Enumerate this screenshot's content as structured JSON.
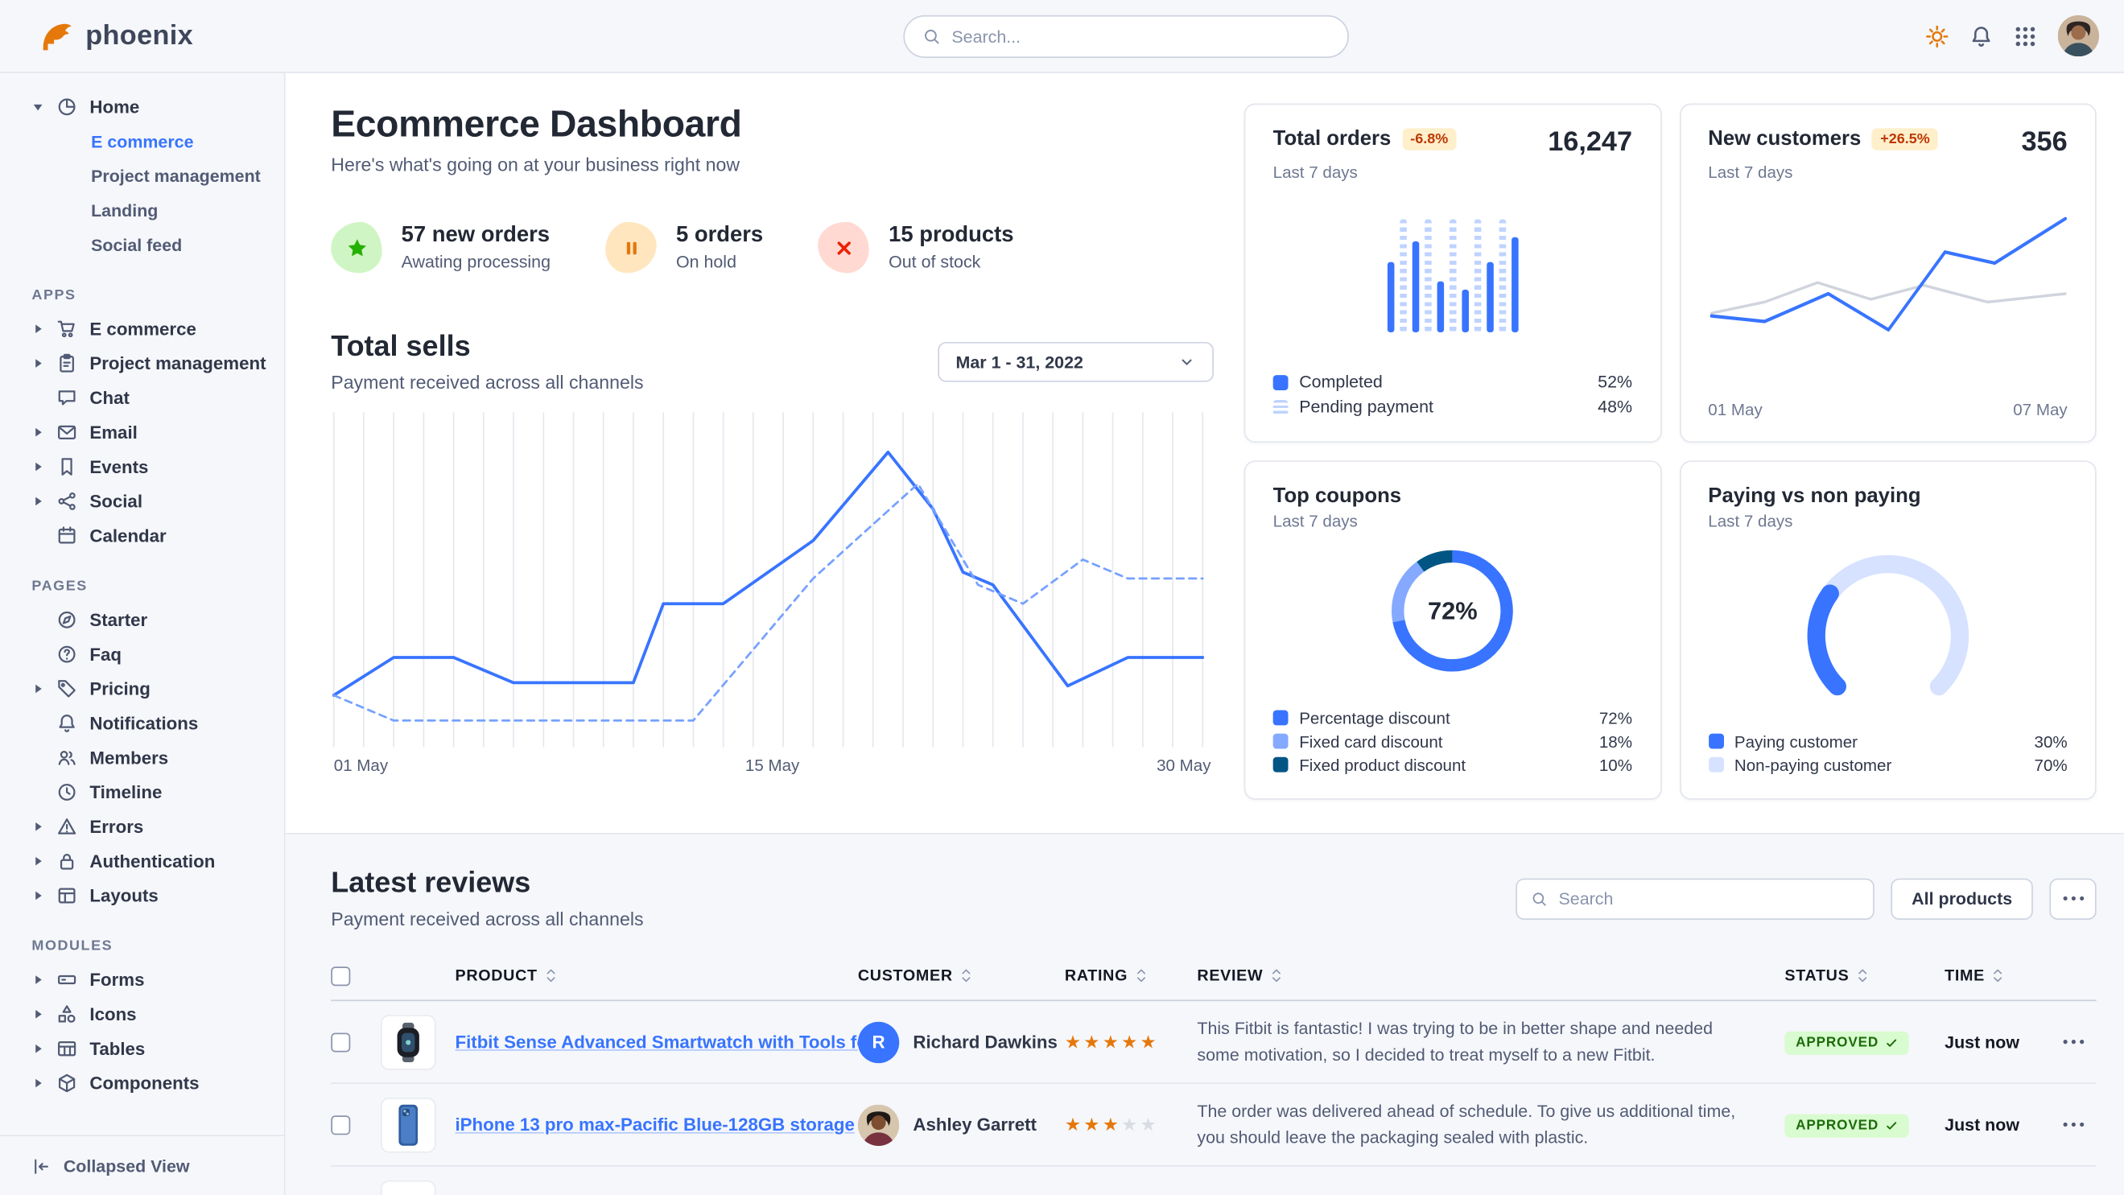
{
  "colors": {
    "primary": "#3874ff",
    "badge_warning_bg": "#ffefca",
    "badge_warning_text": "#bc3803",
    "badge_success_bg": "#d9fbd0",
    "badge_success_text": "#1c6c09",
    "star_filled": "#e5780b",
    "star_empty": "#d9dce3"
  },
  "navbar": {
    "logo_text": "phoenix",
    "search_placeholder": "Search..."
  },
  "sidebar": {
    "home": {
      "label": "Home",
      "children": [
        {
          "label": "E commerce",
          "active": true
        },
        {
          "label": "Project management",
          "active": false
        },
        {
          "label": "Landing",
          "active": false
        },
        {
          "label": "Social feed",
          "active": false
        }
      ]
    },
    "sections": [
      {
        "label": "APPS",
        "items": [
          {
            "label": "E commerce",
            "icon": "cart-icon",
            "caret": true
          },
          {
            "label": "Project management",
            "icon": "clipboard-icon",
            "caret": true
          },
          {
            "label": "Chat",
            "icon": "chat-icon",
            "caret": false
          },
          {
            "label": "Email",
            "icon": "mail-icon",
            "caret": true
          },
          {
            "label": "Events",
            "icon": "bookmark-icon",
            "caret": true
          },
          {
            "label": "Social",
            "icon": "share-icon",
            "caret": true
          },
          {
            "label": "Calendar",
            "icon": "calendar-icon",
            "caret": false
          }
        ]
      },
      {
        "label": "PAGES",
        "items": [
          {
            "label": "Starter",
            "icon": "compass-icon",
            "caret": false
          },
          {
            "label": "Faq",
            "icon": "question-icon",
            "caret": false
          },
          {
            "label": "Pricing",
            "icon": "tag-icon",
            "caret": true
          },
          {
            "label": "Notifications",
            "icon": "bell-icon",
            "caret": false
          },
          {
            "label": "Members",
            "icon": "users-icon",
            "caret": false
          },
          {
            "label": "Timeline",
            "icon": "clock-icon",
            "caret": false
          },
          {
            "label": "Errors",
            "icon": "warning-icon",
            "caret": true
          },
          {
            "label": "Authentication",
            "icon": "lock-icon",
            "caret": true
          },
          {
            "label": "Layouts",
            "icon": "layout-icon",
            "caret": true
          }
        ]
      },
      {
        "label": "MODULES",
        "items": [
          {
            "label": "Forms",
            "icon": "form-icon",
            "caret": true
          },
          {
            "label": "Icons",
            "icon": "shapes-icon",
            "caret": true
          },
          {
            "label": "Tables",
            "icon": "table-icon",
            "caret": true
          },
          {
            "label": "Components",
            "icon": "cube-icon",
            "caret": true
          }
        ]
      }
    ],
    "footer": {
      "label": "Collapsed View"
    }
  },
  "header": {
    "title": "Ecommerce Dashboard",
    "subtitle": "Here's what's going on at your business right now"
  },
  "stats": [
    {
      "icon": "star",
      "value": "57 new orders",
      "label": "Awating processing",
      "color": "#25b003",
      "bg": "#d0f5c4"
    },
    {
      "icon": "pause",
      "value": "5 orders",
      "label": "On hold",
      "color": "#e5780b",
      "bg": "#ffe6bf"
    },
    {
      "icon": "x",
      "value": "15 products",
      "label": "Out of stock",
      "color": "#ed2000",
      "bg": "#ffd9d2"
    }
  ],
  "total_sells": {
    "title": "Total sells",
    "subtitle": "Payment received across all channels",
    "date_range": "Mar 1 - 31, 2022"
  },
  "cards": {
    "total_orders": {
      "title": "Total orders",
      "badge": "-6.8%",
      "value": "16,247",
      "period": "Last 7 days",
      "legend": [
        {
          "label": "Completed",
          "value": "52%",
          "variant": "solid"
        },
        {
          "label": "Pending payment",
          "value": "48%",
          "variant": "faded"
        }
      ]
    },
    "new_customers": {
      "title": "New customers",
      "badge": "+26.5%",
      "value": "356",
      "period": "Last 7 days",
      "x_labels": [
        "01 May",
        "07 May"
      ]
    },
    "top_coupons": {
      "title": "Top coupons",
      "period": "Last 7 days"
    },
    "paying": {
      "title": "Paying vs non paying",
      "period": "Last 7 days"
    }
  },
  "chart_data": [
    {
      "id": "total-sells",
      "type": "line",
      "title": "Total sells",
      "x_labels": [
        "01 May",
        "15 May",
        "30 May"
      ],
      "x_range": [
        1,
        30
      ],
      "y_range": [
        0,
        100
      ],
      "grid": "vertical-daily",
      "legend_position": "none",
      "series": [
        {
          "name": "current",
          "style": "solid",
          "color": "#3874ff",
          "points": [
            [
              1,
              13
            ],
            [
              3,
              25
            ],
            [
              5,
              25
            ],
            [
              7,
              17
            ],
            [
              11,
              17
            ],
            [
              12,
              42
            ],
            [
              14,
              42
            ],
            [
              17,
              62
            ],
            [
              19.5,
              90
            ],
            [
              21,
              72
            ],
            [
              22,
              52
            ],
            [
              23,
              48
            ],
            [
              25.5,
              16
            ],
            [
              27.5,
              25
            ],
            [
              30,
              25
            ]
          ]
        },
        {
          "name": "previous",
          "style": "dashed",
          "color": "#76a1ff",
          "points": [
            [
              1,
              13
            ],
            [
              3,
              5
            ],
            [
              13,
              5
            ],
            [
              17,
              50
            ],
            [
              20.5,
              80
            ],
            [
              22.5,
              48
            ],
            [
              24,
              42
            ],
            [
              26,
              56
            ],
            [
              27.5,
              50
            ],
            [
              30,
              50
            ]
          ]
        }
      ]
    },
    {
      "id": "total-orders",
      "type": "bar",
      "ylim": [
        0,
        100
      ],
      "bars": [
        {
          "value": 62,
          "variant": "solid"
        },
        {
          "value": 100,
          "variant": "faded"
        },
        {
          "value": 80,
          "variant": "solid"
        },
        {
          "value": 100,
          "variant": "faded"
        },
        {
          "value": 45,
          "variant": "solid"
        },
        {
          "value": 100,
          "variant": "faded"
        },
        {
          "value": 38,
          "variant": "solid"
        },
        {
          "value": 100,
          "variant": "faded"
        },
        {
          "value": 62,
          "variant": "solid"
        },
        {
          "value": 100,
          "variant": "faded"
        },
        {
          "value": 84,
          "variant": "solid"
        }
      ]
    },
    {
      "id": "new-customers",
      "type": "line",
      "x_labels": [
        "01 May",
        "07 May"
      ],
      "series": [
        {
          "name": "previous",
          "style": "solid",
          "color": "#d0d4dd",
          "points": [
            [
              0,
              22
            ],
            [
              15,
              30
            ],
            [
              30,
              44
            ],
            [
              45,
              32
            ],
            [
              60,
              42
            ],
            [
              78,
              30
            ],
            [
              100,
              36
            ]
          ]
        },
        {
          "name": "current",
          "style": "solid",
          "color": "#3874ff",
          "points": [
            [
              0,
              20
            ],
            [
              15,
              16
            ],
            [
              33,
              36
            ],
            [
              50,
              10
            ],
            [
              66,
              66
            ],
            [
              80,
              58
            ],
            [
              100,
              90
            ]
          ]
        }
      ]
    },
    {
      "id": "top-coupons",
      "type": "donut",
      "center_label": "72%",
      "segments": [
        {
          "label": "Percentage discount",
          "value": 72,
          "color": "#3874ff"
        },
        {
          "label": "Fixed card discount",
          "value": 18,
          "color": "#85a9ff"
        },
        {
          "label": "Fixed product discount",
          "value": 10,
          "color": "#005585"
        }
      ]
    },
    {
      "id": "paying-gauge",
      "type": "gauge",
      "arc_degrees": 270,
      "segments": [
        {
          "label": "Paying customer",
          "value": 30,
          "color": "#3874ff"
        },
        {
          "label": "Non-paying customer",
          "value": 70,
          "color": "#d6e2ff"
        }
      ]
    }
  ],
  "reviews": {
    "title": "Latest reviews",
    "subtitle": "Payment received across all channels",
    "search_placeholder": "Search",
    "filter_button": "All products",
    "columns": [
      "PRODUCT",
      "CUSTOMER",
      "RATING",
      "REVIEW",
      "STATUS",
      "TIME"
    ],
    "rating_max": 5,
    "has_more_rows": true,
    "rows": [
      {
        "product": "Fitbit Sense Advanced Smartwatch with Tools fo...",
        "product_image": "watch",
        "customer": "Richard Dawkins",
        "avatar": {
          "type": "initial",
          "text": "R"
        },
        "rating": 5,
        "review": "This Fitbit is fantastic! I was trying to be in better shape and needed some motivation, so I decided to treat myself to a new Fitbit.",
        "status": "APPROVED",
        "time": "Just now"
      },
      {
        "product": "iPhone 13 pro max-Pacific Blue-128GB storage",
        "product_image": "phone",
        "customer": "Ashley Garrett",
        "avatar": {
          "type": "photo"
        },
        "rating": 3,
        "review": "The order was delivered ahead of schedule. To give us additional time, you should leave the packaging sealed with plastic.",
        "status": "APPROVED",
        "time": "Just now"
      }
    ]
  }
}
